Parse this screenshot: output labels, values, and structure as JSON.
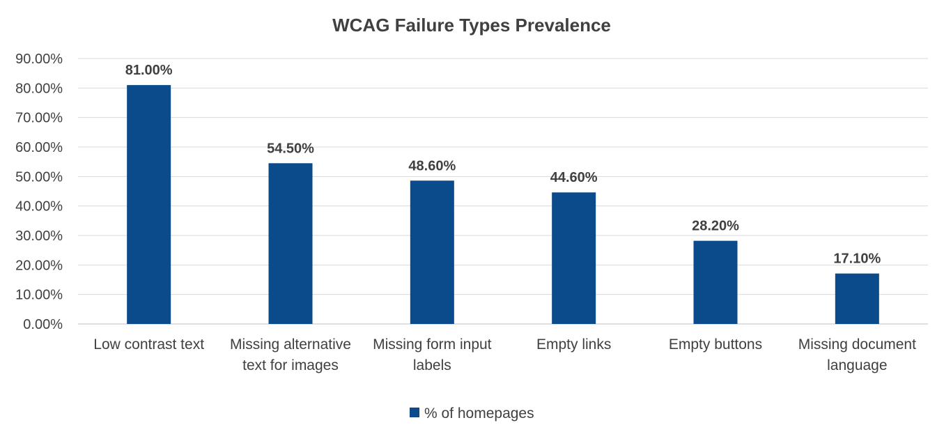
{
  "chart_data": {
    "type": "bar",
    "title": "WCAG Failure Types Prevalence",
    "categories": [
      [
        "Low contrast text"
      ],
      [
        "Missing alternative",
        "text for images"
      ],
      [
        "Missing form input",
        "labels"
      ],
      [
        "Empty links"
      ],
      [
        "Empty buttons"
      ],
      [
        "Missing document",
        "language"
      ]
    ],
    "series": [
      {
        "name": "% of homepages",
        "color": "#0B4A8B",
        "values": [
          81.0,
          54.5,
          48.6,
          44.6,
          28.2,
          17.1
        ],
        "labels": [
          "81.00%",
          "54.50%",
          "48.60%",
          "44.60%",
          "28.20%",
          "17.10%"
        ]
      }
    ],
    "ylim": [
      0,
      90
    ],
    "yticks": [
      0,
      10,
      20,
      30,
      40,
      50,
      60,
      70,
      80,
      90
    ],
    "ytick_labels": [
      "0.00%",
      "10.00%",
      "20.00%",
      "30.00%",
      "40.00%",
      "50.00%",
      "60.00%",
      "70.00%",
      "80.00%",
      "90.00%"
    ],
    "grid": true,
    "legend_position": "bottom"
  }
}
